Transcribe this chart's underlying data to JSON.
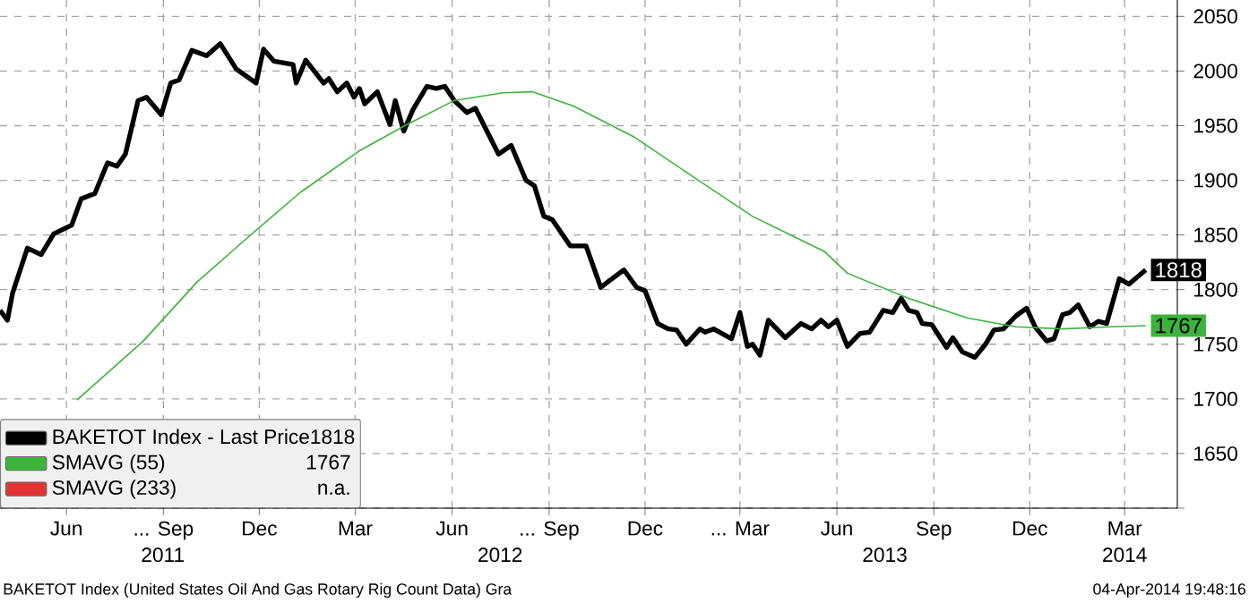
{
  "chart_data": {
    "type": "line",
    "x": [
      "2011-04-13",
      "2011-04-20",
      "2011-04-25",
      "2011-05-09",
      "2011-05-22",
      "2011-06-03",
      "2011-06-20",
      "2011-06-29",
      "2011-07-12",
      "2011-07-24",
      "2011-08-02",
      "2011-08-10",
      "2011-08-22",
      "2011-08-30",
      "2011-09-13",
      "2011-09-22",
      "2011-09-30",
      "2011-10-12",
      "2011-10-26",
      "2011-11-08",
      "2011-11-23",
      "2011-12-12",
      "2011-12-19",
      "2011-12-29",
      "2012-01-16",
      "2012-01-19",
      "2012-01-28",
      "2012-02-14",
      "2012-02-19",
      "2012-02-27",
      "2012-03-07",
      "2012-03-14",
      "2012-03-19",
      "2012-03-24",
      "2012-04-05",
      "2012-04-17",
      "2012-04-22",
      "2012-04-30",
      "2012-05-09",
      "2012-05-22",
      "2012-05-31",
      "2012-06-08",
      "2012-06-17",
      "2012-06-29",
      "2012-07-07",
      "2012-07-29",
      "2012-08-10",
      "2012-08-24",
      "2012-09-01",
      "2012-09-10",
      "2012-09-18",
      "2012-10-05",
      "2012-10-20",
      "2012-11-03",
      "2012-11-11",
      "2012-11-25",
      "2012-12-07",
      "2012-12-15",
      "2012-12-27",
      "2013-01-06",
      "2013-01-14",
      "2013-01-23",
      "2013-02-05",
      "2013-02-10",
      "2013-02-18",
      "2013-03-07",
      "2013-03-15",
      "2013-03-22",
      "2013-03-27",
      "2013-04-03",
      "2013-04-11",
      "2013-04-27",
      "2013-05-12",
      "2013-05-22",
      "2013-05-31",
      "2013-06-07",
      "2013-06-15",
      "2013-06-25",
      "2013-07-07",
      "2013-07-16",
      "2013-07-29",
      "2013-08-07",
      "2013-08-15",
      "2013-08-22",
      "2013-08-30",
      "2013-09-04",
      "2013-09-13",
      "2013-09-27",
      "2013-10-03",
      "2013-10-12",
      "2013-10-24",
      "2013-11-03",
      "2013-11-11",
      "2013-11-20",
      "2013-12-02",
      "2013-12-12",
      "2013-12-20",
      "2013-12-31",
      "2014-01-07",
      "2014-01-15",
      "2014-01-22",
      "2014-01-30",
      "2014-02-10",
      "2014-02-18",
      "2014-02-26",
      "2014-03-10",
      "2014-03-19",
      "2014-04-04"
    ],
    "series": [
      {
        "name": "BAKETOT Index - Last Price",
        "color": "#000000",
        "values": [
          1781,
          1772,
          1797,
          1838,
          1832,
          1851,
          1859,
          1883,
          1888,
          1916,
          1913,
          1924,
          1973,
          1976,
          1960,
          1989,
          1992,
          2019,
          2014,
          2025,
          2002,
          1989,
          2020,
          2009,
          2006,
          1989,
          2010,
          1989,
          1993,
          1981,
          1989,
          1976,
          1984,
          1970,
          1981,
          1951,
          1973,
          1945,
          1965,
          1986,
          1984,
          1986,
          1973,
          1962,
          1966,
          1924,
          1932,
          1900,
          1895,
          1867,
          1864,
          1840,
          1840,
          1802,
          1808,
          1818,
          1802,
          1799,
          1769,
          1764,
          1763,
          1750,
          1764,
          1761,
          1764,
          1755,
          1779,
          1748,
          1750,
          1740,
          1772,
          1756,
          1769,
          1764,
          1772,
          1766,
          1772,
          1748,
          1760,
          1761,
          1781,
          1779,
          1792,
          1781,
          1779,
          1769,
          1768,
          1747,
          1756,
          1743,
          1738,
          1750,
          1763,
          1764,
          1776,
          1783,
          1766,
          1753,
          1755,
          1777,
          1779,
          1786,
          1766,
          1771,
          1769,
          1810,
          1805,
          1818
        ],
        "value_labels": [
          null,
          null,
          null,
          null,
          null,
          null,
          null,
          null,
          null,
          null,
          null,
          null,
          null,
          null,
          null,
          null,
          null,
          null,
          null,
          null,
          null,
          null,
          null,
          null,
          null,
          null,
          null,
          null,
          null,
          null,
          null,
          null,
          null,
          null,
          null,
          null,
          null,
          null,
          null,
          null,
          null,
          null,
          null,
          null,
          null,
          null,
          null,
          null,
          null,
          null,
          null,
          null,
          null,
          null,
          null,
          null,
          null,
          null,
          null,
          null,
          null,
          null,
          null,
          null,
          null,
          null,
          null,
          null,
          null,
          null,
          null,
          null,
          null,
          null,
          null,
          null,
          null,
          null,
          null,
          null,
          null,
          null,
          null,
          null,
          null,
          null,
          null,
          null,
          null,
          null,
          null,
          null,
          null,
          null,
          null,
          null,
          null,
          null,
          null,
          null,
          null,
          null,
          null,
          null,
          null,
          null,
          null,
          "1818"
        ]
      },
      {
        "name": "SMAVG (55)",
        "color": "#3cb43c",
        "x": [
          "2011-06-25",
          "2011-08-27",
          "2011-10-17",
          "2011-12-02",
          "2012-01-23",
          "2012-03-19",
          "2012-05-03",
          "2012-06-17",
          "2012-08-02",
          "2012-08-30",
          "2012-10-08",
          "2012-12-04",
          "2013-01-30",
          "2013-03-27",
          "2013-04-30",
          "2013-06-03",
          "2013-06-25",
          "2013-08-22",
          "2013-10-17",
          "2013-12-02",
          "2014-01-15",
          "2014-03-02",
          "2014-04-04"
        ],
        "values": [
          1699,
          1753,
          1807,
          1846,
          1889,
          1927,
          1951,
          1973,
          1980,
          1981,
          1968,
          1940,
          1903,
          1867,
          1851,
          1835,
          1815,
          1792,
          1774,
          1766,
          1764,
          1766,
          1767
        ],
        "value_labels": [
          null,
          null,
          null,
          null,
          null,
          null,
          null,
          null,
          null,
          null,
          null,
          null,
          null,
          null,
          null,
          null,
          null,
          null,
          null,
          null,
          null,
          null,
          "1767"
        ]
      },
      {
        "name": "SMAVG (233)",
        "color": "#e03434",
        "values": [
          null,
          null,
          null,
          null,
          null,
          null,
          null,
          null,
          null,
          null,
          null,
          null,
          null,
          null,
          null,
          null,
          null,
          null,
          null,
          null,
          null,
          null,
          null,
          null,
          null,
          null,
          null,
          null,
          null,
          null,
          null,
          null,
          null,
          null,
          null,
          null,
          null,
          null,
          null,
          null,
          null,
          null,
          null,
          null,
          null,
          null,
          null,
          null,
          null,
          null,
          null,
          null,
          null,
          null,
          null,
          null,
          null,
          null,
          null,
          null,
          null,
          null,
          null,
          null,
          null,
          null,
          null,
          null,
          null,
          null,
          null,
          null,
          null,
          null,
          null,
          null,
          null,
          null,
          null,
          null,
          null,
          null,
          null,
          null,
          null,
          null,
          null,
          null,
          null,
          null,
          null,
          null,
          null,
          null,
          null,
          null,
          null,
          null,
          null,
          null,
          null,
          null,
          null,
          null,
          null,
          null,
          null,
          null
        ]
      }
    ],
    "xlim": [
      "2011-04-13",
      "2014-05-04"
    ],
    "xticks": [
      {
        "value": "2011-06-15",
        "label": "Jun"
      },
      {
        "value": "2011-09-15",
        "label": "... Sep"
      },
      {
        "value": "2011-12-15",
        "label": "Dec"
      },
      {
        "value": "2012-03-15",
        "label": "Mar"
      },
      {
        "value": "2012-06-15",
        "label": "Jun"
      },
      {
        "value": "2012-09-15",
        "label": "... Sep"
      },
      {
        "value": "2012-12-15",
        "label": "Dec"
      },
      {
        "value": "2013-03-15",
        "label": "... Mar"
      },
      {
        "value": "2013-06-15",
        "label": "Jun"
      },
      {
        "value": "2013-09-15",
        "label": "Sep"
      },
      {
        "value": "2013-12-15",
        "label": "Dec"
      },
      {
        "value": "2014-03-15",
        "label": "Mar"
      }
    ],
    "ylim": [
      1600,
      2065
    ],
    "yticks": [
      {
        "value": 1600,
        "label": null
      },
      1650,
      1700,
      1750,
      1800,
      1850,
      1900,
      1950,
      2000,
      2050
    ],
    "grid": true,
    "legend": "bottom left",
    "annotations": [
      "1818",
      "1767",
      "n.a.",
      "BAKETOT Index (United States Oil And Gas Rotary Rig Count Data) Gra",
      "04-Apr-2014 19:48:16",
      "2011",
      "2012",
      "2013",
      "2014"
    ]
  }
}
